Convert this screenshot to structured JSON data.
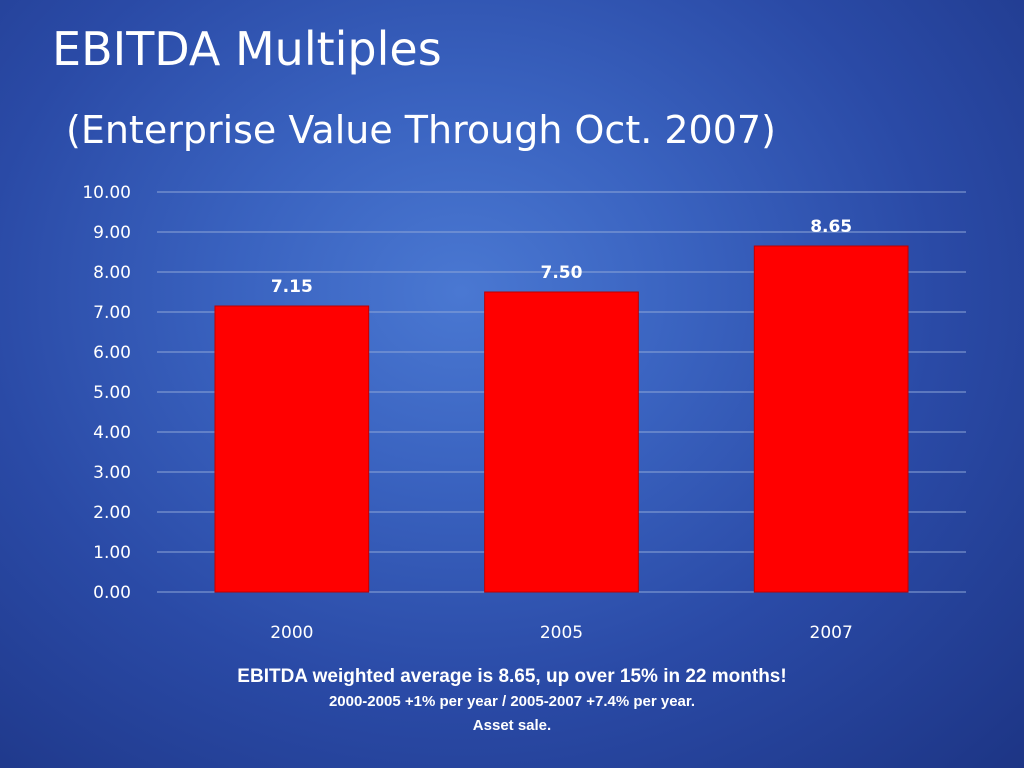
{
  "slide": {
    "title": "EBITDA Multiples",
    "subtitle": "(Enterprise Value Through Oct. 2007)"
  },
  "chart_data": {
    "type": "bar",
    "categories": [
      "2000",
      "2005",
      "2007"
    ],
    "values": [
      7.15,
      7.5,
      8.65
    ],
    "data_labels": [
      "7.15",
      "7.50",
      "8.65"
    ],
    "y_ticks": [
      "0.00",
      "1.00",
      "2.00",
      "3.00",
      "4.00",
      "5.00",
      "6.00",
      "7.00",
      "8.00",
      "9.00",
      "10.00"
    ],
    "ylim": [
      0,
      10
    ],
    "grid": true,
    "legend": "none",
    "bar_color": "#ff0000"
  },
  "captions": {
    "line1": "EBITDA weighted average is 8.65, up over 15% in 22 months!",
    "line2": "2000-2005 +1% per year / 2005-2007 +7.4% per year.",
    "line3": "Asset sale."
  }
}
